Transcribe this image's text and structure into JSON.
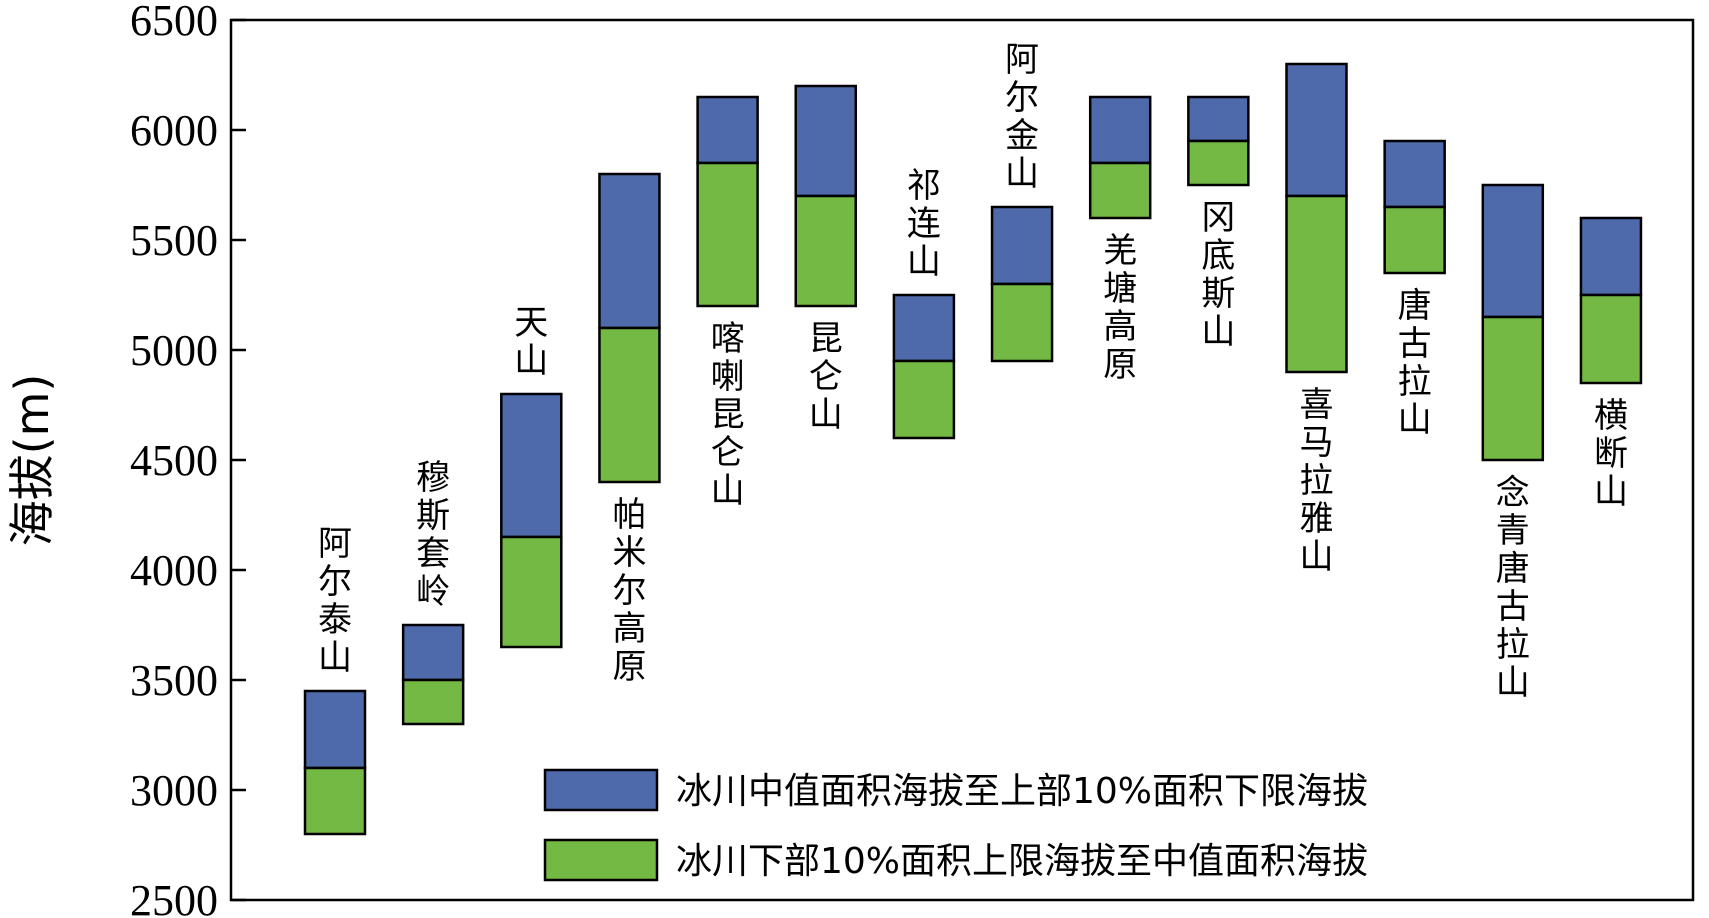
{
  "chart_data": {
    "type": "bar",
    "subtype": "floating-stacked-range",
    "ylabel": "海拔(m)",
    "ylim": [
      2500,
      6500
    ],
    "yticks": [
      2500,
      3000,
      3500,
      4000,
      4500,
      5000,
      5500,
      6000,
      6500
    ],
    "grid": false,
    "legend_position": "bottom-right",
    "categories": [
      "阿尔泰山",
      "穆斯套岭",
      "天山",
      "帕米尔高原",
      "喀喇昆仑山",
      "昆仑山",
      "祁连山",
      "阿尔金山",
      "羌塘高原",
      "冈底斯山",
      "喜马拉雅山",
      "唐古拉山",
      "念青唐古拉山",
      "横断山"
    ],
    "series": [
      {
        "name": "冰川中值面积海拔至上部10%面积下限海拔",
        "color": "#4f6aaa",
        "low": [
          3100,
          3500,
          4150,
          5100,
          5850,
          5700,
          4950,
          5300,
          5850,
          5950,
          5700,
          5650,
          5150,
          5250
        ],
        "high": [
          3450,
          3750,
          4800,
          5800,
          6150,
          6200,
          5250,
          5650,
          6150,
          6150,
          6300,
          5950,
          5750,
          5600
        ]
      },
      {
        "name": "冰川下部10%面积上限海拔至中值面积海拔",
        "color": "#74b944",
        "low": [
          2800,
          3300,
          3650,
          4400,
          5200,
          5200,
          4600,
          4950,
          5600,
          5750,
          4900,
          5350,
          4500,
          4850
        ],
        "high": [
          3100,
          3500,
          4150,
          5100,
          5850,
          5700,
          4950,
          5300,
          5850,
          5950,
          5700,
          5650,
          5150,
          5250
        ]
      }
    ],
    "label_position": [
      "above",
      "above",
      "above",
      "below",
      "below",
      "below",
      "above",
      "above",
      "below",
      "below",
      "below",
      "below",
      "below",
      "below"
    ]
  }
}
